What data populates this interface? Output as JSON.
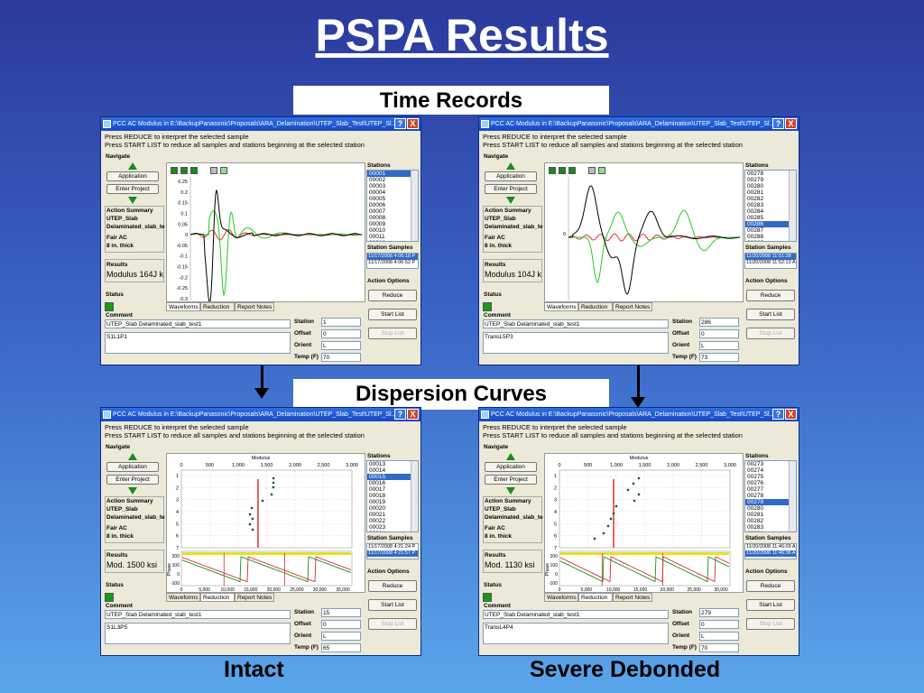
{
  "slide": {
    "title": "PSPA Results",
    "band_top": "Time Records",
    "band_middle": "Dispersion Curves",
    "caption_left": "Intact",
    "caption_right": "Severe Debonded"
  },
  "common": {
    "window_title": "PCC AC Modulus in E:\\BackupPanasonic\\Proposals\\ARA_Delamination\\UTEP_Slab_Test\\UTEP_Sl...",
    "help_glyph": "?",
    "close_glyph": "X",
    "message_line1": "Press REDUCE to interpret the selected sample",
    "message_line2": "Press START LIST to reduce all samples and stations beginning at the selected station",
    "navigate_label": "Navigate",
    "application_btn": "Application",
    "enter_project_btn": "Enter Project",
    "action_summary_label": "Action Summary",
    "summary_line1": "UTEP_Slab",
    "summary_line2": "Delaminated_slab_te",
    "summary_line3": "Fair    AC",
    "summary_line4": "8 in. thick",
    "results_label": "Results",
    "status_label": "Status",
    "comment_label": "Comment",
    "comment_value": "UTEP_Slab Delaminated_slab_test1",
    "stations_label": "Stations",
    "station_samples_label": "Station Samples",
    "action_options_label": "Action Options",
    "reduce_btn": "Reduce",
    "start_list_btn": "Start List",
    "stop_list_btn": "Stop List",
    "station_label": "Station",
    "offset_label": "Offset",
    "orient_label": "Orient",
    "temp_label": "Temp (F)",
    "tab_waveforms": "Waveforms",
    "tab_reduction": "Reduction",
    "tab_report": "Report Notes",
    "modulus_axis_label": "Modulus",
    "phase_axis_label": "Phase"
  },
  "windows": [
    {
      "results_value": "Modulus 164J k",
      "station": "1",
      "offset": "0",
      "orient": "L",
      "temp": "70",
      "note": "S1L1P1",
      "stations": [
        "00001",
        "00002",
        "00003",
        "00004",
        "00005",
        "00006",
        "00007",
        "00008",
        "00009",
        "00010",
        "00011",
        "00012"
      ],
      "selected_station": 0,
      "samples": [
        "11/17/2008 4:06:18 P",
        "11/17/2008 4:06:52 P"
      ],
      "selected_sample": 0,
      "y_ticks": [
        "0.25",
        "0.2",
        "0.15",
        "0.1",
        "0.05",
        "0",
        "-0.05",
        "-0.1",
        "-0.15",
        "-0.2",
        "-0.25",
        "-0.3"
      ]
    },
    {
      "results_value": "Modulus 104J k",
      "station": "286",
      "offset": "0",
      "orient": "L",
      "temp": "73",
      "note": "TransL5P3",
      "stations": [
        "00278",
        "00279",
        "00280",
        "00281",
        "00282",
        "00283",
        "00284",
        "00285",
        "00286",
        "00287",
        "00288",
        "00289"
      ],
      "selected_station": 8,
      "samples": [
        "11/20/2008 11:51:28",
        "11/20/2008 11:52:13 A"
      ],
      "selected_sample": 0,
      "y_ticks": [
        "0"
      ]
    },
    {
      "results_value": "Mod. 1500 ksi",
      "station": "15",
      "offset": "0",
      "orient": "L",
      "temp": "65",
      "note": "S1L3P5",
      "stations": [
        "00013",
        "00014",
        "00015",
        "00016",
        "00017",
        "00018",
        "00019",
        "00020",
        "00021",
        "00022",
        "00023",
        "00024"
      ],
      "selected_station": 2,
      "samples": [
        "11/17/2008 4:21:24 P",
        "11/17/2008 4:21:57 P"
      ],
      "selected_sample": 1,
      "top_ticks": [
        "0",
        "500",
        "1,000",
        "1,500",
        "2,000",
        "2,500",
        "3,000"
      ],
      "depth_ticks": [
        "1",
        "2",
        "3",
        "4",
        "5",
        "6",
        "7"
      ],
      "phase_ticks": [
        "200",
        "100",
        "0",
        "-100"
      ],
      "freq_ticks": [
        "0",
        "5,000",
        "10,000",
        "15,000",
        "20,000",
        "25,000",
        "30,000",
        "35,000"
      ]
    },
    {
      "results_value": "Mod. 1130 ksi",
      "station": "279",
      "offset": "0",
      "orient": "L",
      "temp": "70",
      "note": "TransL4P4",
      "stations": [
        "00273",
        "00274",
        "00275",
        "00276",
        "00277",
        "00278",
        "00279",
        "00280",
        "00281",
        "00282",
        "00283",
        "00284"
      ],
      "selected_station": 6,
      "samples": [
        "11/20/2008 11:46:09 A",
        "11/20/2008 11:46:36 A"
      ],
      "selected_sample": 1,
      "top_ticks": [
        "0",
        "500",
        "1,000",
        "1,500",
        "2,000",
        "2,500",
        "3,000"
      ],
      "depth_ticks": [
        "1",
        "2",
        "3",
        "4",
        "5",
        "6",
        "7"
      ],
      "phase_ticks": [
        "200",
        "100",
        "0",
        "-100"
      ],
      "freq_ticks": [
        "0",
        "5,000",
        "10,000",
        "15,000",
        "20,000",
        "25,000",
        "30,000"
      ]
    }
  ]
}
